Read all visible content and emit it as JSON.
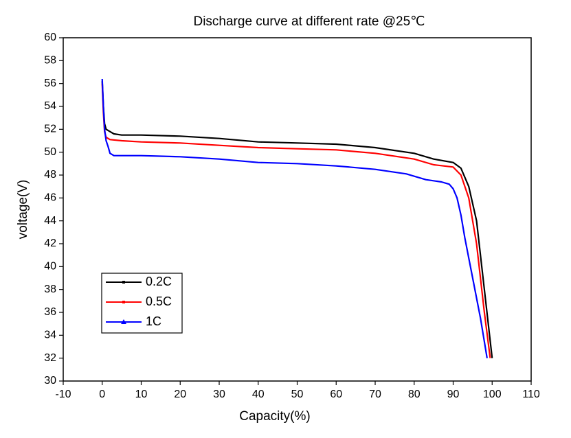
{
  "chart_data": {
    "type": "line",
    "title": "Discharge curve at different rate @25℃",
    "x_label": "Capacity(%)",
    "y_label": "voltage(V)",
    "xlim": [
      -10,
      110
    ],
    "xticks": [
      -10,
      0,
      10,
      20,
      30,
      40,
      50,
      60,
      70,
      80,
      90,
      100,
      110
    ],
    "ylim": [
      30,
      60
    ],
    "yticks": [
      30,
      32,
      34,
      36,
      38,
      40,
      42,
      44,
      46,
      48,
      50,
      52,
      54,
      56,
      58,
      60
    ],
    "legend": "lower-left",
    "series": [
      {
        "name": "0.2C",
        "color": "#000000",
        "x": [
          0,
          0.3,
          0.6,
          1,
          2,
          3,
          5,
          10,
          20,
          30,
          40,
          50,
          60,
          70,
          80,
          85,
          90,
          92,
          94,
          96,
          97,
          98,
          99,
          100
        ],
        "values": [
          56.2,
          54,
          52.5,
          52,
          51.8,
          51.6,
          51.5,
          51.5,
          51.4,
          51.2,
          50.9,
          50.8,
          50.7,
          50.4,
          49.9,
          49.4,
          49.1,
          48.6,
          47,
          44,
          41,
          38,
          35,
          32
        ]
      },
      {
        "name": "0.5C",
        "color": "#ff0000",
        "x": [
          0,
          0.3,
          0.6,
          1,
          2,
          5,
          10,
          20,
          30,
          40,
          50,
          60,
          70,
          80,
          85,
          90,
          92,
          94,
          95,
          96,
          97,
          98,
          99.5
        ],
        "values": [
          56,
          53.5,
          51.8,
          51.3,
          51.1,
          51,
          50.9,
          50.8,
          50.6,
          50.4,
          50.3,
          50.2,
          49.9,
          49.4,
          48.9,
          48.7,
          48,
          46,
          44,
          42,
          39,
          36,
          32
        ]
      },
      {
        "name": "1C",
        "color": "#0000ff",
        "x": [
          0,
          0.3,
          0.6,
          1,
          1.5,
          2,
          3,
          10,
          20,
          30,
          40,
          50,
          60,
          70,
          78,
          83,
          87,
          89,
          90,
          91,
          92,
          93,
          95,
          97,
          98.7
        ],
        "values": [
          56.4,
          54,
          52,
          51,
          50.5,
          49.9,
          49.7,
          49.7,
          49.6,
          49.4,
          49.1,
          49,
          48.8,
          48.5,
          48.1,
          47.6,
          47.4,
          47.2,
          46.8,
          46,
          44.5,
          42.5,
          39,
          35.5,
          32
        ]
      }
    ]
  }
}
